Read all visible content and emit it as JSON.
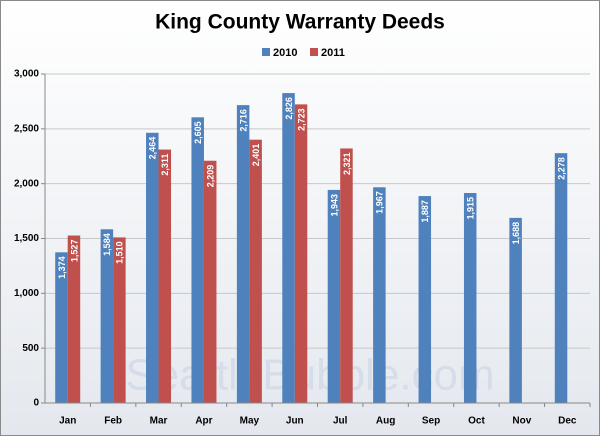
{
  "chart_data": {
    "type": "bar",
    "title": "King County Warranty Deeds",
    "watermark": "SeattleBubble.com",
    "categories": [
      "Jan",
      "Feb",
      "Mar",
      "Apr",
      "May",
      "Jun",
      "Jul",
      "Aug",
      "Sep",
      "Oct",
      "Nov",
      "Dec"
    ],
    "series": [
      {
        "name": "2010",
        "color": "#4f81bd",
        "values": [
          1374,
          1584,
          2464,
          2605,
          2716,
          2826,
          1943,
          1967,
          1887,
          1915,
          1688,
          2278
        ],
        "value_labels": [
          "1,374",
          "1,584",
          "2,464",
          "2,605",
          "2,716",
          "2,826",
          "1,943",
          "1,967",
          "1,887",
          "1,915",
          "1,688",
          "2,278"
        ]
      },
      {
        "name": "2011",
        "color": "#c0504d",
        "values": [
          1527,
          1510,
          2311,
          2209,
          2401,
          2723,
          2321,
          null,
          null,
          null,
          null,
          null
        ],
        "value_labels": [
          "1,527",
          "1,510",
          "2,311",
          "2,209",
          "2,401",
          "2,723",
          "2,321",
          null,
          null,
          null,
          null,
          null
        ]
      }
    ],
    "ylim": [
      0,
      3000
    ],
    "yticks": [
      0,
      500,
      {
        "value": 1000,
        "label": "1,000"
      },
      {
        "value": 1500,
        "label": "1,500"
      },
      {
        "value": 2000,
        "label": "2,000"
      },
      {
        "value": 2500,
        "label": "2,500"
      },
      {
        "value": 3000,
        "label": "3,000"
      }
    ],
    "grid": true,
    "legend": "top"
  }
}
